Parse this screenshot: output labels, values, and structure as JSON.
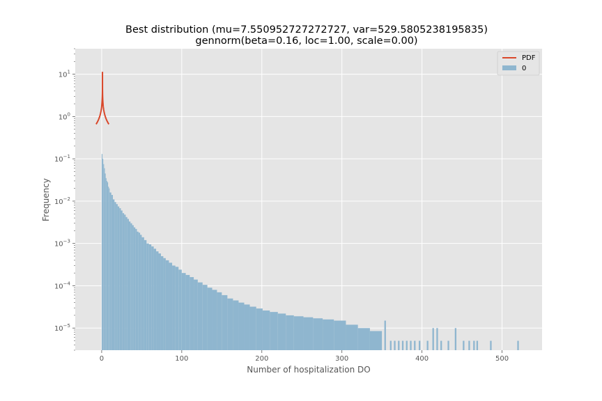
{
  "chart_data": {
    "type": "bar",
    "title_line1": "Best distribution (mu=7.550952727272727, var=529.5805238195835)",
    "title_line2": "gennorm(beta=0.16, loc=1.00, scale=0.00)",
    "xlabel": "Number of hospitalization DO",
    "ylabel": "Frequency",
    "xlim": [
      -33,
      550
    ],
    "ylim": [
      3e-06,
      40
    ],
    "yscale": "log",
    "grid": true,
    "legend_position": "top-right",
    "x_ticks": [
      {
        "value": 0,
        "label": "0"
      },
      {
        "value": 100,
        "label": "100"
      },
      {
        "value": 200,
        "label": "200"
      },
      {
        "value": 300,
        "label": "300"
      },
      {
        "value": 400,
        "label": "400"
      },
      {
        "value": 500,
        "label": "500"
      }
    ],
    "y_ticks": [
      {
        "value": 1e-05,
        "base": "10",
        "exp": "−5"
      },
      {
        "value": 0.0001,
        "base": "10",
        "exp": "−4"
      },
      {
        "value": 0.001,
        "base": "10",
        "exp": "−3"
      },
      {
        "value": 0.01,
        "base": "10",
        "exp": "−2"
      },
      {
        "value": 0.1,
        "base": "10",
        "exp": "−1"
      },
      {
        "value": 1,
        "base": "10",
        "exp": "0"
      },
      {
        "value": 10,
        "base": "10",
        "exp": "1"
      }
    ],
    "histogram": {
      "name": "0",
      "color": "#8fb6cf",
      "bins": [
        [
          0,
          1,
          0.13
        ],
        [
          1,
          2,
          0.1
        ],
        [
          2,
          3,
          0.075
        ],
        [
          3,
          4,
          0.06
        ],
        [
          4,
          5,
          0.045
        ],
        [
          5,
          6,
          0.035
        ],
        [
          6,
          7,
          0.03
        ],
        [
          7,
          8,
          0.028
        ],
        [
          8,
          9,
          0.022
        ],
        [
          9,
          10,
          0.02
        ],
        [
          10,
          12,
          0.016
        ],
        [
          12,
          14,
          0.014
        ],
        [
          14,
          16,
          0.011
        ],
        [
          16,
          18,
          0.0095
        ],
        [
          18,
          20,
          0.0085
        ],
        [
          20,
          22,
          0.0075
        ],
        [
          22,
          24,
          0.0068
        ],
        [
          24,
          26,
          0.006
        ],
        [
          26,
          28,
          0.0052
        ],
        [
          28,
          30,
          0.0048
        ],
        [
          30,
          32,
          0.0042
        ],
        [
          32,
          34,
          0.0038
        ],
        [
          34,
          36,
          0.0033
        ],
        [
          36,
          38,
          0.003
        ],
        [
          38,
          40,
          0.0027
        ],
        [
          40,
          42,
          0.0024
        ],
        [
          42,
          44,
          0.0022
        ],
        [
          44,
          46,
          0.0019
        ],
        [
          46,
          48,
          0.0018
        ],
        [
          48,
          50,
          0.0016
        ],
        [
          50,
          53,
          0.0014
        ],
        [
          53,
          56,
          0.0012
        ],
        [
          56,
          59,
          0.001
        ],
        [
          59,
          62,
          0.00095
        ],
        [
          62,
          65,
          0.00085
        ],
        [
          65,
          68,
          0.00075
        ],
        [
          68,
          71,
          0.00065
        ],
        [
          71,
          74,
          0.00058
        ],
        [
          74,
          77,
          0.0005
        ],
        [
          77,
          80,
          0.00045
        ],
        [
          80,
          84,
          0.0004
        ],
        [
          84,
          88,
          0.00035
        ],
        [
          88,
          92,
          0.0003
        ],
        [
          92,
          96,
          0.00028
        ],
        [
          96,
          100,
          0.00024
        ],
        [
          100,
          105,
          0.0002
        ],
        [
          105,
          110,
          0.00018
        ],
        [
          110,
          115,
          0.00016
        ],
        [
          115,
          120,
          0.00014
        ],
        [
          120,
          126,
          0.00012
        ],
        [
          126,
          132,
          0.000105
        ],
        [
          132,
          138,
          9e-05
        ],
        [
          138,
          144,
          8e-05
        ],
        [
          144,
          150,
          7e-05
        ],
        [
          150,
          157,
          6e-05
        ],
        [
          157,
          164,
          5e-05
        ],
        [
          164,
          171,
          4.5e-05
        ],
        [
          171,
          178,
          4e-05
        ],
        [
          178,
          185,
          3.6e-05
        ],
        [
          185,
          193,
          3.2e-05
        ],
        [
          193,
          201,
          2.9e-05
        ],
        [
          201,
          210,
          2.6e-05
        ],
        [
          210,
          220,
          2.4e-05
        ],
        [
          220,
          230,
          2.2e-05
        ],
        [
          230,
          240,
          2e-05
        ],
        [
          240,
          252,
          1.9e-05
        ],
        [
          252,
          264,
          1.8e-05
        ],
        [
          264,
          276,
          1.7e-05
        ],
        [
          276,
          290,
          1.6e-05
        ],
        [
          290,
          305,
          1.5e-05
        ],
        [
          305,
          320,
          1.2e-05
        ],
        [
          320,
          335,
          1e-05
        ],
        [
          335,
          350,
          8.5e-06
        ]
      ],
      "sparse_bars": [
        [
          353,
          355,
          1.5e-05
        ],
        [
          360,
          362,
          5e-06
        ],
        [
          365,
          367,
          5e-06
        ],
        [
          370,
          372,
          5e-06
        ],
        [
          375,
          377,
          5e-06
        ],
        [
          380,
          382,
          5e-06
        ],
        [
          385,
          387,
          5e-06
        ],
        [
          390,
          392,
          5e-06
        ],
        [
          396,
          398,
          5e-06
        ],
        [
          406,
          408,
          5e-06
        ],
        [
          413,
          415,
          1e-05
        ],
        [
          418,
          420,
          1e-05
        ],
        [
          423,
          425,
          5e-06
        ],
        [
          432,
          434,
          5e-06
        ],
        [
          441,
          443,
          1e-05
        ],
        [
          451,
          453,
          5e-06
        ],
        [
          458,
          460,
          5e-06
        ],
        [
          464,
          466,
          5e-06
        ],
        [
          468,
          470,
          5e-06
        ],
        [
          485,
          487,
          5e-06
        ],
        [
          519,
          521,
          5e-06
        ]
      ]
    },
    "pdf": {
      "name": "PDF",
      "color": "#d9472a",
      "beta": 0.16,
      "loc": 1.0,
      "xmin": -7,
      "xmax": 9,
      "peak": 20
    }
  }
}
